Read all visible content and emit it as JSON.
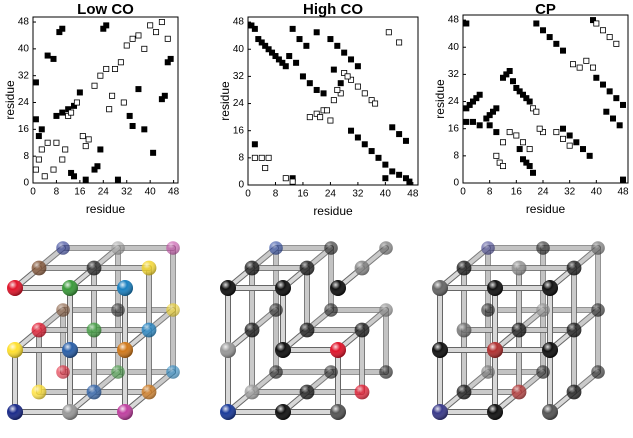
{
  "chart_data": [
    {
      "type": "scatter",
      "title": "Low CO",
      "xlabel": "residue",
      "ylabel": "residue",
      "xlim": [
        0,
        49.5
      ],
      "ylim": [
        0,
        49.5
      ],
      "xticks": [
        0,
        8,
        16,
        24,
        32,
        40,
        48
      ],
      "yticks": [
        0,
        8,
        16,
        24,
        32,
        40,
        48
      ],
      "series": [
        {
          "color": "#000000",
          "fill": "#000000",
          "x": [
            1,
            1,
            2,
            3,
            5,
            7,
            9,
            10,
            8,
            10,
            12,
            14,
            16,
            13,
            14,
            18,
            21,
            22,
            23,
            24,
            25,
            29,
            33,
            34,
            36,
            38,
            41,
            44,
            45,
            46,
            47
          ],
          "values": [
            30,
            19,
            14,
            16,
            38,
            37,
            45,
            46,
            20,
            21,
            22,
            23,
            27,
            3,
            2,
            1,
            4,
            5,
            10,
            46,
            47,
            1,
            20,
            17,
            28,
            16,
            9,
            25,
            26,
            36,
            37
          ]
        },
        {
          "color": "#000000",
          "fill": "#ffffff",
          "x": [
            1,
            2,
            3,
            4,
            5,
            7,
            8,
            10,
            11,
            12,
            13,
            15,
            17,
            18,
            19,
            21,
            23,
            25,
            27,
            28,
            30,
            32,
            34,
            36,
            38,
            40,
            42,
            44,
            46,
            26,
            31
          ],
          "values": [
            4,
            7,
            10,
            2,
            12,
            4,
            12,
            7,
            10,
            20,
            21,
            24,
            14,
            11,
            13,
            29,
            32,
            34,
            26,
            34,
            36,
            41,
            43,
            44,
            40,
            47,
            45,
            48,
            43,
            22,
            24
          ]
        }
      ]
    },
    {
      "type": "scatter",
      "title": "High CO",
      "xlabel": "residue",
      "ylabel": "residue",
      "xlim": [
        0,
        49.5
      ],
      "ylim": [
        0,
        49.5
      ],
      "xticks": [
        0,
        8,
        16,
        24,
        32,
        40,
        48
      ],
      "yticks": [
        0,
        8,
        16,
        24,
        32,
        40,
        48
      ],
      "series": [
        {
          "color": "#000000",
          "fill": "#000000",
          "x": [
            1,
            2,
            3,
            4,
            5,
            6,
            7,
            8,
            9,
            10,
            11,
            12,
            14,
            16,
            18,
            20,
            22,
            13,
            15,
            17,
            20,
            24,
            26,
            28,
            30,
            32,
            25,
            27,
            30,
            32,
            34,
            36,
            38,
            40,
            42,
            44,
            46,
            47,
            42,
            44,
            46,
            2,
            13,
            40
          ],
          "values": [
            47,
            46,
            43,
            42,
            41,
            40,
            39,
            38,
            37,
            36,
            35,
            38,
            36,
            32,
            30,
            28,
            27,
            46,
            43,
            41,
            45,
            43,
            41,
            39,
            37,
            35,
            34,
            30,
            16,
            14,
            12,
            10,
            8,
            6,
            4,
            3,
            2,
            1,
            17,
            15,
            13,
            12,
            2,
            2
          ]
        },
        {
          "color": "#000000",
          "fill": "#ffffff",
          "x": [
            2,
            4,
            6,
            5,
            11,
            13,
            18,
            20,
            22,
            24,
            25,
            27,
            28,
            30,
            32,
            34,
            36,
            37,
            44,
            41,
            21,
            23,
            26,
            29
          ],
          "values": [
            8,
            8,
            8,
            5,
            2,
            1,
            20,
            21,
            22,
            19,
            25,
            27,
            33,
            31,
            29,
            27,
            25,
            24,
            42,
            45,
            20,
            22,
            28,
            32
          ]
        }
      ]
    },
    {
      "type": "scatter",
      "title": "CP",
      "xlabel": "residue",
      "ylabel": "residue",
      "xlim": [
        0,
        49.5
      ],
      "ylim": [
        0,
        49.5
      ],
      "xticks": [
        0,
        8,
        16,
        24,
        32,
        40,
        48
      ],
      "yticks": [
        0,
        8,
        16,
        24,
        32,
        40,
        48
      ],
      "series": [
        {
          "color": "#000000",
          "fill": "#000000",
          "x": [
            1,
            1,
            2,
            3,
            4,
            5,
            7,
            8,
            9,
            10,
            1,
            3,
            5,
            8,
            10,
            12,
            13,
            14,
            15,
            16,
            17,
            18,
            19,
            20,
            17,
            18,
            19,
            20,
            21,
            22,
            24,
            26,
            28,
            30,
            30,
            32,
            34,
            36,
            38,
            40,
            42,
            44,
            46,
            48,
            43,
            45,
            47,
            48,
            39
          ],
          "values": [
            47,
            22,
            23,
            24,
            25,
            26,
            19,
            20,
            21,
            22,
            18,
            18,
            17,
            17,
            15,
            31,
            32,
            33,
            30,
            28,
            27,
            26,
            25,
            24,
            10,
            7,
            6,
            5,
            3,
            47,
            45,
            43,
            41,
            39,
            16,
            14,
            12,
            10,
            8,
            31,
            29,
            27,
            25,
            23,
            21,
            19,
            17,
            1,
            48
          ]
        },
        {
          "color": "#000000",
          "fill": "#ffffff",
          "x": [
            10,
            12,
            14,
            16,
            18,
            20,
            21,
            22,
            28,
            30,
            32,
            33,
            35,
            37,
            39,
            40,
            42,
            44,
            46,
            11,
            12,
            24,
            23
          ],
          "values": [
            8,
            12,
            15,
            14,
            12,
            10,
            22,
            21,
            15,
            13,
            11,
            35,
            34,
            36,
            34,
            47,
            45,
            43,
            41,
            6,
            5,
            15,
            16
          ]
        }
      ]
    }
  ]
}
